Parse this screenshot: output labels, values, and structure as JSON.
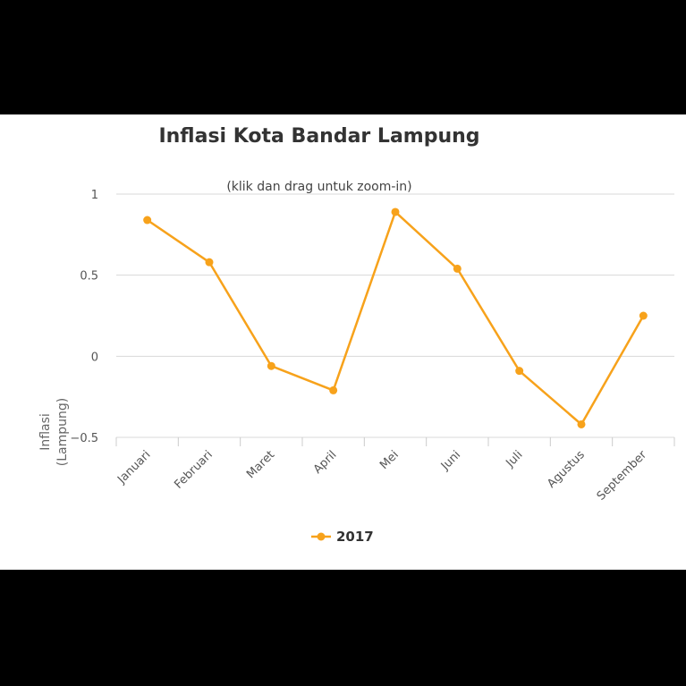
{
  "chart_data": {
    "type": "line",
    "title": "Inflasi Kota Bandar Lampung",
    "subtitle": "(klik dan drag untuk zoom-in)",
    "xlabel": "",
    "ylabel_lines": [
      "Inflasi",
      "(Lampung)"
    ],
    "categories": [
      "Januari",
      "Februari",
      "Maret",
      "April",
      "Mei",
      "Juni",
      "Juli",
      "Agustus",
      "September"
    ],
    "series": [
      {
        "name": "2017",
        "values": [
          0.84,
          0.58,
          -0.06,
          -0.21,
          0.89,
          0.54,
          -0.09,
          -0.42,
          0.25
        ]
      }
    ],
    "ylim": [
      -0.5,
      1
    ],
    "yticks": [
      1,
      0.5,
      0,
      -0.5
    ],
    "ytick_labels": [
      "1",
      "0.5",
      "0",
      "−0.5"
    ],
    "grid": true,
    "legend_position": "bottom-center",
    "series_color": "#f7a21b"
  }
}
